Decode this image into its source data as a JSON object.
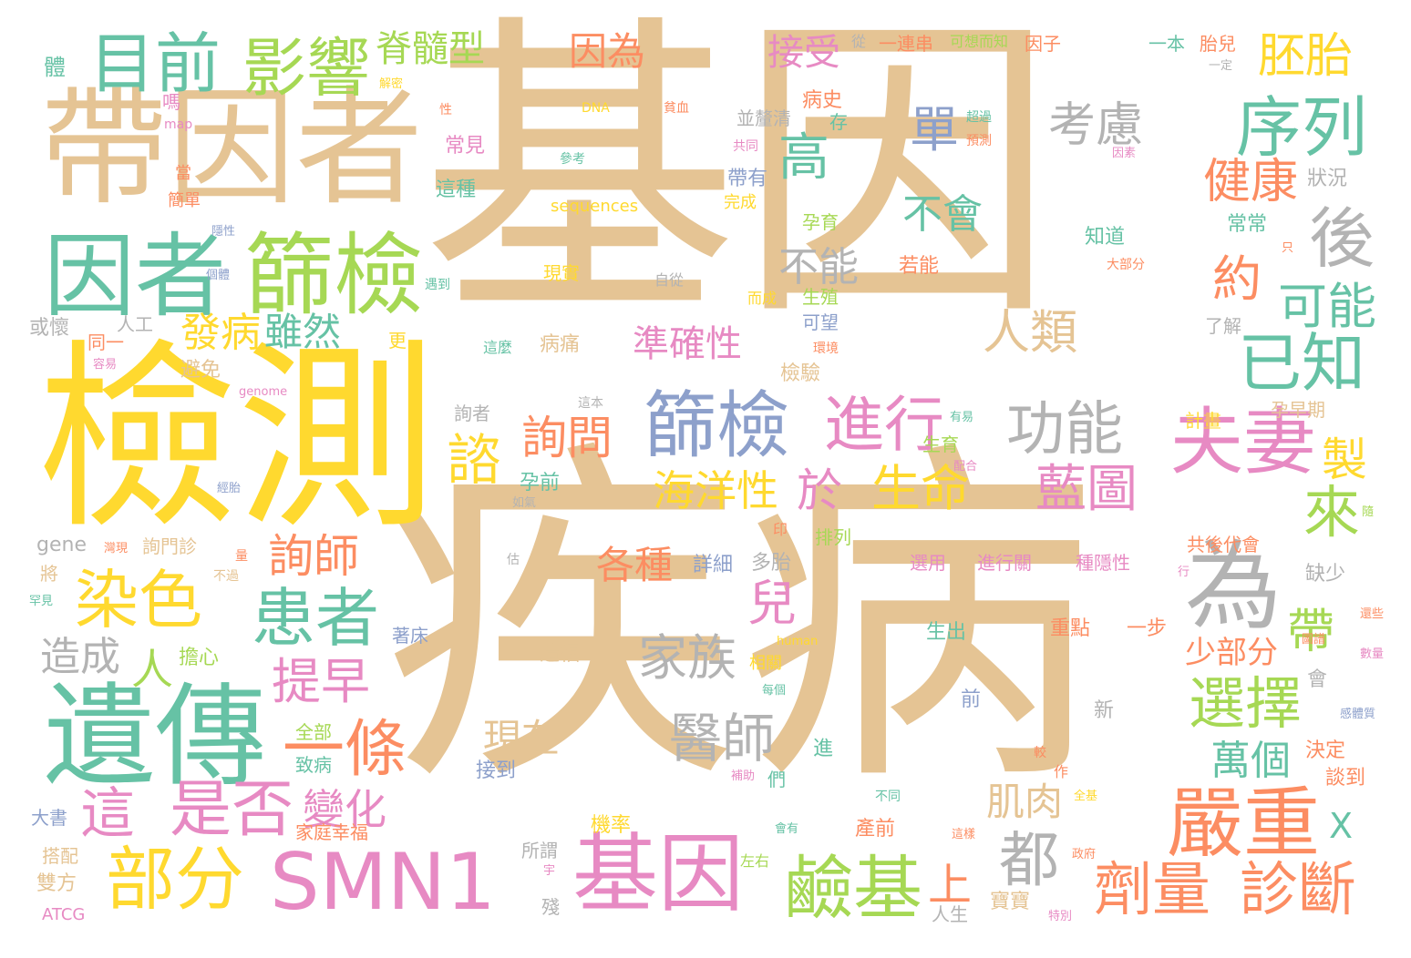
{
  "palette": {
    "tan": "#e5c494",
    "yellow": "#ffd92f",
    "green": "#66c2a5",
    "lime": "#a6d854",
    "orange": "#fc8d62",
    "pink": "#e78ac3",
    "blue": "#8da0cb",
    "gray": "#b3b3b3"
  },
  "words": [
    {
      "id": "w1",
      "text": "基因",
      "color": "tan"
    },
    {
      "id": "w2",
      "text": "疾病",
      "color": "tan"
    },
    {
      "id": "w3",
      "text": "檢測",
      "color": "yellow"
    },
    {
      "id": "w4",
      "text": "帶因者",
      "color": "tan"
    },
    {
      "id": "w5",
      "text": "因者",
      "color": "green"
    },
    {
      "id": "w6",
      "text": "篩檢",
      "color": "lime"
    },
    {
      "id": "w7",
      "text": "遺傳",
      "color": "green"
    },
    {
      "id": "w8",
      "text": "目前",
      "color": "green"
    },
    {
      "id": "w9",
      "text": "影響",
      "color": "lime"
    },
    {
      "id": "w10",
      "text": "脊髓型",
      "color": "lime"
    },
    {
      "id": "w11",
      "text": "因為",
      "color": "orange"
    },
    {
      "id": "w12",
      "text": "接受",
      "color": "pink"
    },
    {
      "id": "w13",
      "text": "胚胎",
      "color": "yellow"
    },
    {
      "id": "w14",
      "text": "序列",
      "color": "green"
    },
    {
      "id": "w15",
      "text": "考慮",
      "color": "gray"
    },
    {
      "id": "w16",
      "text": "單",
      "color": "blue"
    },
    {
      "id": "w17",
      "text": "高",
      "color": "green"
    },
    {
      "id": "w18",
      "text": "健康",
      "color": "orange"
    },
    {
      "id": "w19",
      "text": "後",
      "color": "gray"
    },
    {
      "id": "w20",
      "text": "約",
      "color": "orange"
    },
    {
      "id": "w21",
      "text": "可能",
      "color": "green"
    },
    {
      "id": "w22",
      "text": "已知",
      "color": "green"
    },
    {
      "id": "w23",
      "text": "人類",
      "color": "tan"
    },
    {
      "id": "w24",
      "text": "不會",
      "color": "green"
    },
    {
      "id": "w25",
      "text": "不能",
      "color": "gray"
    },
    {
      "id": "w26",
      "text": "發病",
      "color": "yellow"
    },
    {
      "id": "w27",
      "text": "雖然",
      "color": "green"
    },
    {
      "id": "w28",
      "text": "準確性",
      "color": "pink"
    },
    {
      "id": "w29",
      "text": "功能",
      "color": "gray"
    },
    {
      "id": "w30",
      "text": "夫妻",
      "color": "pink"
    },
    {
      "id": "w31",
      "text": "進行",
      "color": "pink"
    },
    {
      "id": "w32",
      "text": "篩檢",
      "color": "blue"
    },
    {
      "id": "w33",
      "text": "諮",
      "color": "yellow"
    },
    {
      "id": "w34",
      "text": "詢問",
      "color": "orange"
    },
    {
      "id": "w35",
      "text": "海洋性",
      "color": "yellow"
    },
    {
      "id": "w36",
      "text": "於",
      "color": "pink"
    },
    {
      "id": "w37",
      "text": "生命",
      "color": "yellow"
    },
    {
      "id": "w38",
      "text": "藍圖",
      "color": "pink"
    },
    {
      "id": "w39",
      "text": "來",
      "color": "lime"
    },
    {
      "id": "w40",
      "text": "製",
      "color": "yellow"
    },
    {
      "id": "w41",
      "text": "為",
      "color": "gray"
    },
    {
      "id": "w42",
      "text": "詢師",
      "color": "orange"
    },
    {
      "id": "w43",
      "text": "染色",
      "color": "yellow"
    },
    {
      "id": "w44",
      "text": "患者",
      "color": "green"
    },
    {
      "id": "w45",
      "text": "兒",
      "color": "pink"
    },
    {
      "id": "w46",
      "text": "各種",
      "color": "orange"
    },
    {
      "id": "w47",
      "text": "家族",
      "color": "gray"
    },
    {
      "id": "w48",
      "text": "人",
      "color": "lime"
    },
    {
      "id": "w49",
      "text": "造成",
      "color": "gray"
    },
    {
      "id": "w50",
      "text": "提早",
      "color": "pink"
    },
    {
      "id": "w51",
      "text": "一條",
      "color": "orange"
    },
    {
      "id": "w52",
      "text": "選擇",
      "color": "lime"
    },
    {
      "id": "w53",
      "text": "帶",
      "color": "lime"
    },
    {
      "id": "w54",
      "text": "少部分",
      "color": "orange"
    },
    {
      "id": "w55",
      "text": "醫師",
      "color": "gray"
    },
    {
      "id": "w56",
      "text": "現在",
      "color": "tan"
    },
    {
      "id": "w57",
      "text": "萬個",
      "color": "green"
    },
    {
      "id": "w58",
      "text": "這",
      "color": "pink"
    },
    {
      "id": "w59",
      "text": "是否",
      "color": "pink"
    },
    {
      "id": "w60",
      "text": "變化",
      "color": "pink"
    },
    {
      "id": "w61",
      "text": "部分",
      "color": "yellow"
    },
    {
      "id": "w62",
      "text": "SMN1",
      "color": "pink"
    },
    {
      "id": "w63",
      "text": "基因",
      "color": "pink"
    },
    {
      "id": "w64",
      "text": "鹼基",
      "color": "lime"
    },
    {
      "id": "w65",
      "text": "都",
      "color": "gray"
    },
    {
      "id": "w66",
      "text": "嚴重",
      "color": "orange"
    },
    {
      "id": "w67",
      "text": "劑量",
      "color": "orange"
    },
    {
      "id": "w68",
      "text": "診斷",
      "color": "orange"
    },
    {
      "id": "w69",
      "text": "上",
      "color": "orange"
    },
    {
      "id": "w70",
      "text": "肌肉",
      "color": "tan"
    },
    {
      "id": "w71",
      "text": "X",
      "color": "green"
    },
    {
      "id": "w72",
      "text": "體",
      "color": "green"
    },
    {
      "id": "w73",
      "text": "一連串",
      "color": "orange"
    },
    {
      "id": "w74",
      "text": "可想而知",
      "color": "lime"
    },
    {
      "id": "w75",
      "text": "因子",
      "color": "orange"
    },
    {
      "id": "w76",
      "text": "一本",
      "color": "green"
    },
    {
      "id": "w77",
      "text": "胎兒",
      "color": "orange"
    },
    {
      "id": "w78",
      "text": "病史",
      "color": "orange"
    },
    {
      "id": "w79",
      "text": "並釐清",
      "color": "gray"
    },
    {
      "id": "w80",
      "text": "存",
      "color": "green"
    },
    {
      "id": "w81",
      "text": "常見",
      "color": "pink"
    },
    {
      "id": "w82",
      "text": "這種",
      "color": "green"
    },
    {
      "id": "w83",
      "text": "帶有",
      "color": "blue"
    },
    {
      "id": "w84",
      "text": "sequences",
      "color": "yellow"
    },
    {
      "id": "w85",
      "text": "狀況",
      "color": "gray"
    },
    {
      "id": "w86",
      "text": "常常",
      "color": "green"
    },
    {
      "id": "w87",
      "text": "孕育",
      "color": "lime"
    },
    {
      "id": "w88",
      "text": "知道",
      "color": "green"
    },
    {
      "id": "w89",
      "text": "若能",
      "color": "orange"
    },
    {
      "id": "w90",
      "text": "生殖",
      "color": "lime"
    },
    {
      "id": "w91",
      "text": "可望",
      "color": "blue"
    },
    {
      "id": "w92",
      "text": "現實",
      "color": "yellow"
    },
    {
      "id": "w93",
      "text": "人工",
      "color": "gray"
    },
    {
      "id": "w94",
      "text": "同一",
      "color": "orange"
    },
    {
      "id": "w95",
      "text": "或懷",
      "color": "gray"
    },
    {
      "id": "w96",
      "text": "避免",
      "color": "tan"
    },
    {
      "id": "w97",
      "text": "更",
      "color": "yellow"
    },
    {
      "id": "w98",
      "text": "病痛",
      "color": "tan"
    },
    {
      "id": "w99",
      "text": "檢驗",
      "color": "tan"
    },
    {
      "id": "w100",
      "text": "了解",
      "color": "gray"
    },
    {
      "id": "w101",
      "text": "詢者",
      "color": "gray"
    },
    {
      "id": "w102",
      "text": "生育",
      "color": "lime"
    },
    {
      "id": "w103",
      "text": "計畫",
      "color": "yellow"
    },
    {
      "id": "w104",
      "text": "孕早期",
      "color": "tan"
    },
    {
      "id": "w105",
      "text": "孕前",
      "color": "green"
    },
    {
      "id": "w106",
      "text": "排列",
      "color": "lime"
    },
    {
      "id": "w107",
      "text": "共後代會",
      "color": "orange"
    },
    {
      "id": "w108",
      "text": "詢門診",
      "color": "tan"
    },
    {
      "id": "w109",
      "text": "gene",
      "color": "gray"
    },
    {
      "id": "w110",
      "text": "詳細",
      "color": "blue"
    },
    {
      "id": "w111",
      "text": "多胎",
      "color": "gray"
    },
    {
      "id": "w112",
      "text": "選用",
      "color": "pink"
    },
    {
      "id": "w113",
      "text": "進行關",
      "color": "pink"
    },
    {
      "id": "w114",
      "text": "種隱性",
      "color": "pink"
    },
    {
      "id": "w115",
      "text": "缺少",
      "color": "gray"
    },
    {
      "id": "w116",
      "text": "將",
      "color": "tan"
    },
    {
      "id": "w117",
      "text": "擔心",
      "color": "lime"
    },
    {
      "id": "w118",
      "text": "著床",
      "color": "blue"
    },
    {
      "id": "w119",
      "text": "生出",
      "color": "green"
    },
    {
      "id": "w120",
      "text": "重點",
      "color": "orange"
    },
    {
      "id": "w121",
      "text": "一步",
      "color": "orange"
    },
    {
      "id": "w122",
      "text": "會",
      "color": "gray"
    },
    {
      "id": "w123",
      "text": "造福",
      "color": "tan"
    },
    {
      "id": "w124",
      "text": "相關",
      "color": "yellow"
    },
    {
      "id": "w125",
      "text": "全部",
      "color": "lime"
    },
    {
      "id": "w126",
      "text": "致病",
      "color": "green"
    },
    {
      "id": "w127",
      "text": "接到",
      "color": "blue"
    },
    {
      "id": "w128",
      "text": "前",
      "color": "blue"
    },
    {
      "id": "w129",
      "text": "進",
      "color": "green"
    },
    {
      "id": "w130",
      "text": "新",
      "color": "gray"
    },
    {
      "id": "w131",
      "text": "決定",
      "color": "orange"
    },
    {
      "id": "w132",
      "text": "談到",
      "color": "orange"
    },
    {
      "id": "w133",
      "text": "們",
      "color": "green"
    },
    {
      "id": "w134",
      "text": "大書",
      "color": "blue"
    },
    {
      "id": "w135",
      "text": "家庭幸福",
      "color": "orange"
    },
    {
      "id": "w136",
      "text": "機率",
      "color": "yellow"
    },
    {
      "id": "w137",
      "text": "產前",
      "color": "orange"
    },
    {
      "id": "w138",
      "text": "搭配",
      "color": "tan"
    },
    {
      "id": "w139",
      "text": "所謂",
      "color": "gray"
    },
    {
      "id": "w140",
      "text": "雙方",
      "color": "tan"
    },
    {
      "id": "w141",
      "text": "ATCG",
      "color": "pink"
    },
    {
      "id": "w142",
      "text": "殘",
      "color": "gray"
    },
    {
      "id": "w143",
      "text": "人生",
      "color": "gray"
    },
    {
      "id": "w144",
      "text": "寶寶",
      "color": "tan"
    },
    {
      "id": "w145",
      "text": "嗎",
      "color": "pink"
    },
    {
      "id": "w146",
      "text": "當",
      "color": "orange"
    },
    {
      "id": "w147",
      "text": "簡單",
      "color": "orange"
    },
    {
      "id": "w148",
      "text": "從",
      "color": "gray"
    },
    {
      "id": "w149",
      "text": "解密",
      "color": "yellow"
    },
    {
      "id": "w150",
      "text": "DNA",
      "color": "yellow"
    },
    {
      "id": "w151",
      "text": "貧血",
      "color": "orange"
    },
    {
      "id": "w152",
      "text": "超過",
      "color": "green"
    },
    {
      "id": "w153",
      "text": "預測",
      "color": "orange"
    },
    {
      "id": "w154",
      "text": "共同",
      "color": "pink"
    },
    {
      "id": "w155",
      "text": "參考",
      "color": "green"
    },
    {
      "id": "w156",
      "text": "完成",
      "color": "yellow"
    },
    {
      "id": "w157",
      "text": "map",
      "color": "pink"
    },
    {
      "id": "w158",
      "text": "性",
      "color": "orange"
    },
    {
      "id": "w159",
      "text": "一定",
      "color": "gray"
    },
    {
      "id": "w160",
      "text": "因素",
      "color": "pink"
    },
    {
      "id": "w161",
      "text": "隱性",
      "color": "blue"
    },
    {
      "id": "w162",
      "text": "個體",
      "color": "blue"
    },
    {
      "id": "w163",
      "text": "遇到",
      "color": "green"
    },
    {
      "id": "w164",
      "text": "自從",
      "color": "gray"
    },
    {
      "id": "w165",
      "text": "而成",
      "color": "yellow"
    },
    {
      "id": "w166",
      "text": "只",
      "color": "orange"
    },
    {
      "id": "w167",
      "text": "大部分",
      "color": "orange"
    },
    {
      "id": "w168",
      "text": "環境",
      "color": "orange"
    },
    {
      "id": "w169",
      "text": "容易",
      "color": "pink"
    },
    {
      "id": "w170",
      "text": "genome",
      "color": "pink"
    },
    {
      "id": "w171",
      "text": "這麼",
      "color": "green"
    },
    {
      "id": "w172",
      "text": "這本",
      "color": "gray"
    },
    {
      "id": "w173",
      "text": "有易",
      "color": "green"
    },
    {
      "id": "w174",
      "text": "配合",
      "color": "pink"
    },
    {
      "id": "w175",
      "text": "如氣",
      "color": "gray"
    },
    {
      "id": "w176",
      "text": "經胎",
      "color": "blue"
    },
    {
      "id": "w177",
      "text": "印",
      "color": "orange"
    },
    {
      "id": "w178",
      "text": "量",
      "color": "orange"
    },
    {
      "id": "w179",
      "text": "不過",
      "color": "tan"
    },
    {
      "id": "w180",
      "text": "估",
      "color": "gray"
    },
    {
      "id": "w181",
      "text": "罕見",
      "color": "green"
    },
    {
      "id": "w182",
      "text": "灣現",
      "color": "orange"
    },
    {
      "id": "w183",
      "text": "行",
      "color": "pink"
    },
    {
      "id": "w184",
      "text": "human",
      "color": "yellow"
    },
    {
      "id": "w185",
      "text": "每個",
      "color": "green"
    },
    {
      "id": "w186",
      "text": "較",
      "color": "orange"
    },
    {
      "id": "w187",
      "text": "補助",
      "color": "pink"
    },
    {
      "id": "w188",
      "text": "作",
      "color": "orange"
    },
    {
      "id": "w189",
      "text": "全基",
      "color": "yellow"
    },
    {
      "id": "w190",
      "text": "不同",
      "color": "green"
    },
    {
      "id": "w191",
      "text": "會有",
      "color": "green"
    },
    {
      "id": "w192",
      "text": "這樣",
      "color": "orange"
    },
    {
      "id": "w193",
      "text": "政府",
      "color": "orange"
    },
    {
      "id": "w194",
      "text": "左右",
      "color": "lime"
    },
    {
      "id": "w195",
      "text": "宇",
      "color": "pink"
    },
    {
      "id": "w196",
      "text": "特別",
      "color": "pink"
    },
    {
      "id": "w197",
      "text": "隨",
      "color": "lime"
    },
    {
      "id": "w198",
      "text": "還些",
      "color": "orange"
    },
    {
      "id": "w199",
      "text": "數量",
      "color": "pink"
    },
    {
      "id": "w200",
      "text": "圖譜",
      "color": "orange"
    },
    {
      "id": "w201",
      "text": "感體質",
      "color": "blue"
    }
  ]
}
